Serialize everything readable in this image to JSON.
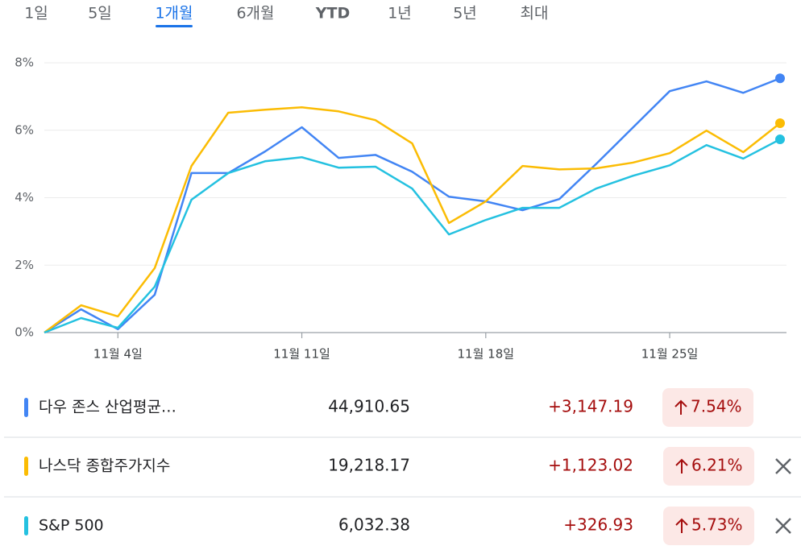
{
  "tabs": [
    "1일",
    "5일",
    "1개월",
    "6개월",
    "YTD",
    "1년",
    "5년",
    "최대"
  ],
  "selected_tab": 2,
  "chart_data": {
    "type": "line",
    "categories": [
      null,
      null,
      "11월 4일",
      null,
      null,
      null,
      null,
      "11월 11일",
      null,
      null,
      null,
      null,
      "11월 18일",
      null,
      null,
      null,
      null,
      "11월 25일",
      null,
      null,
      null
    ],
    "ylim": [
      0,
      8
    ],
    "yticks": [
      {
        "value": 0,
        "label": "0%"
      },
      {
        "value": 2,
        "label": "2%"
      },
      {
        "value": 4,
        "label": "4%"
      },
      {
        "value": 6,
        "label": "6%"
      },
      {
        "value": 8,
        "label": "8%"
      }
    ],
    "grid": true,
    "series": [
      {
        "name": "다우 존스 산업평균…",
        "color": "#4285f4",
        "values": [
          0,
          0.69,
          0.1,
          1.12,
          4.73,
          4.73,
          5.37,
          6.09,
          5.18,
          5.27,
          4.77,
          4.03,
          3.89,
          3.63,
          3.96,
          5.0,
          6.08,
          7.16,
          7.45,
          7.11,
          7.54
        ]
      },
      {
        "name": "나스닥 종합주가지수",
        "color": "#fbbc04",
        "values": [
          0,
          0.81,
          0.48,
          1.91,
          4.94,
          6.52,
          6.61,
          6.68,
          6.56,
          6.3,
          5.61,
          3.25,
          3.89,
          4.94,
          4.84,
          4.87,
          5.04,
          5.32,
          5.99,
          5.35,
          6.21
        ]
      },
      {
        "name": "S&P 500",
        "color": "#24c1e0",
        "values": [
          0,
          0.43,
          0.14,
          1.36,
          3.94,
          4.73,
          5.08,
          5.2,
          4.89,
          4.92,
          4.27,
          2.91,
          3.34,
          3.7,
          3.7,
          4.27,
          4.65,
          4.96,
          5.56,
          5.16,
          5.73
        ]
      }
    ]
  },
  "rows": [
    {
      "price": "44,910.65",
      "change": "+3,147.19",
      "percent": "7.54%"
    },
    {
      "price": "19,218.17",
      "change": "+1,123.02",
      "percent": "6.21%"
    },
    {
      "price": "6,032.38",
      "change": "+326.93",
      "percent": "5.73%"
    }
  ]
}
